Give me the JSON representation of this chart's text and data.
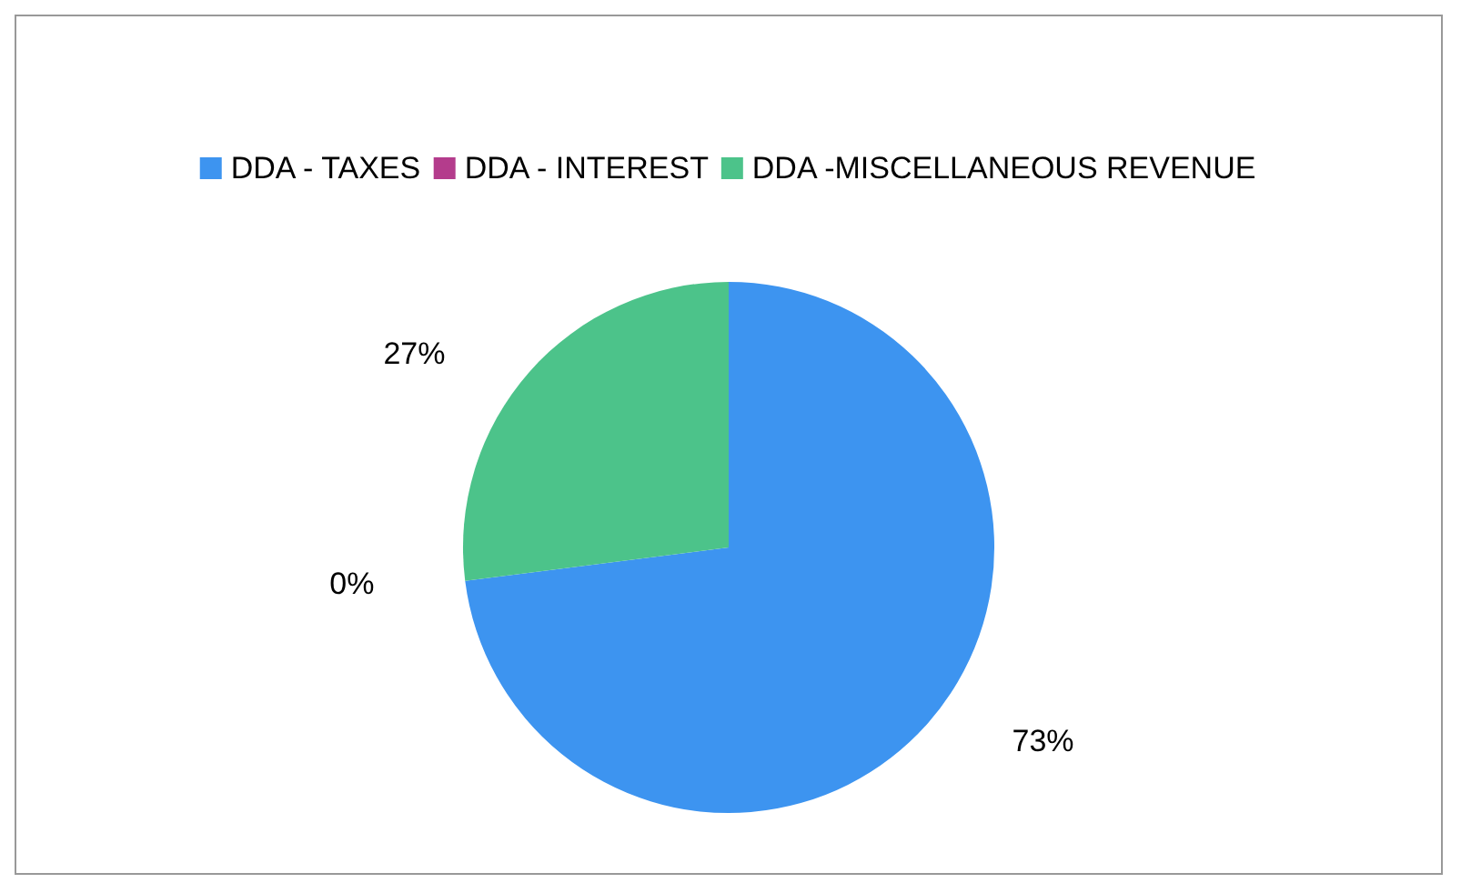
{
  "chart_data": {
    "type": "pie",
    "categories": [
      "DDA - TAXES",
      "DDA - INTEREST",
      "DDA -MISCELLANEOUS REVENUE"
    ],
    "values": [
      73,
      0,
      27
    ],
    "colors": [
      "#3d94f0",
      "#b43c8c",
      "#4cc38a"
    ],
    "value_labels": [
      "73%",
      "0%",
      "27%"
    ],
    "legend": "top"
  }
}
